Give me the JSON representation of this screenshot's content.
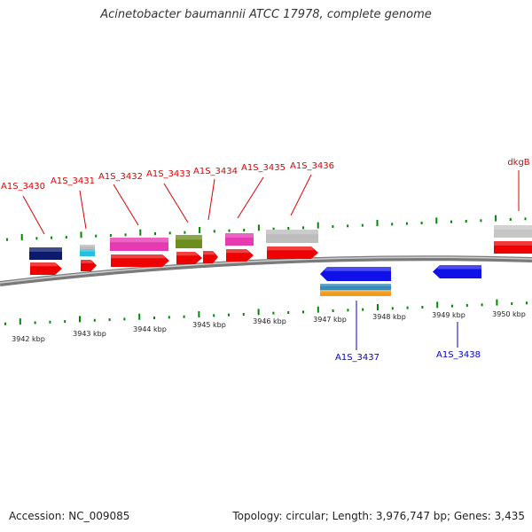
{
  "title": "Acinetobacter baumannii ATCC 17978, complete genome",
  "footer": {
    "accession": "Accession: NC_009085",
    "summary": "Topology: circular; Length: 3,976,747 bp; Genes: 3,435"
  },
  "colors": {
    "forward_label": "#dd0000",
    "reverse_label": "#0000cc",
    "tick": "#008800",
    "backbone": "#808080",
    "cds": "#ee0000"
  },
  "scale_labels": [
    "3942 kbp",
    "3943 kbp",
    "3944 kbp",
    "3945 kbp",
    "3946 kbp",
    "3947 kbp",
    "3948 kbp",
    "3949 kbp",
    "3950 kbp"
  ],
  "genes_forward": [
    "A1S_3430",
    "A1S_3431",
    "A1S_3432",
    "A1S_3433",
    "A1S_3434",
    "A1S_3435",
    "A1S_3436",
    "dkgB"
  ],
  "genes_reverse": [
    "A1S_3437",
    "A1S_3438"
  ]
}
